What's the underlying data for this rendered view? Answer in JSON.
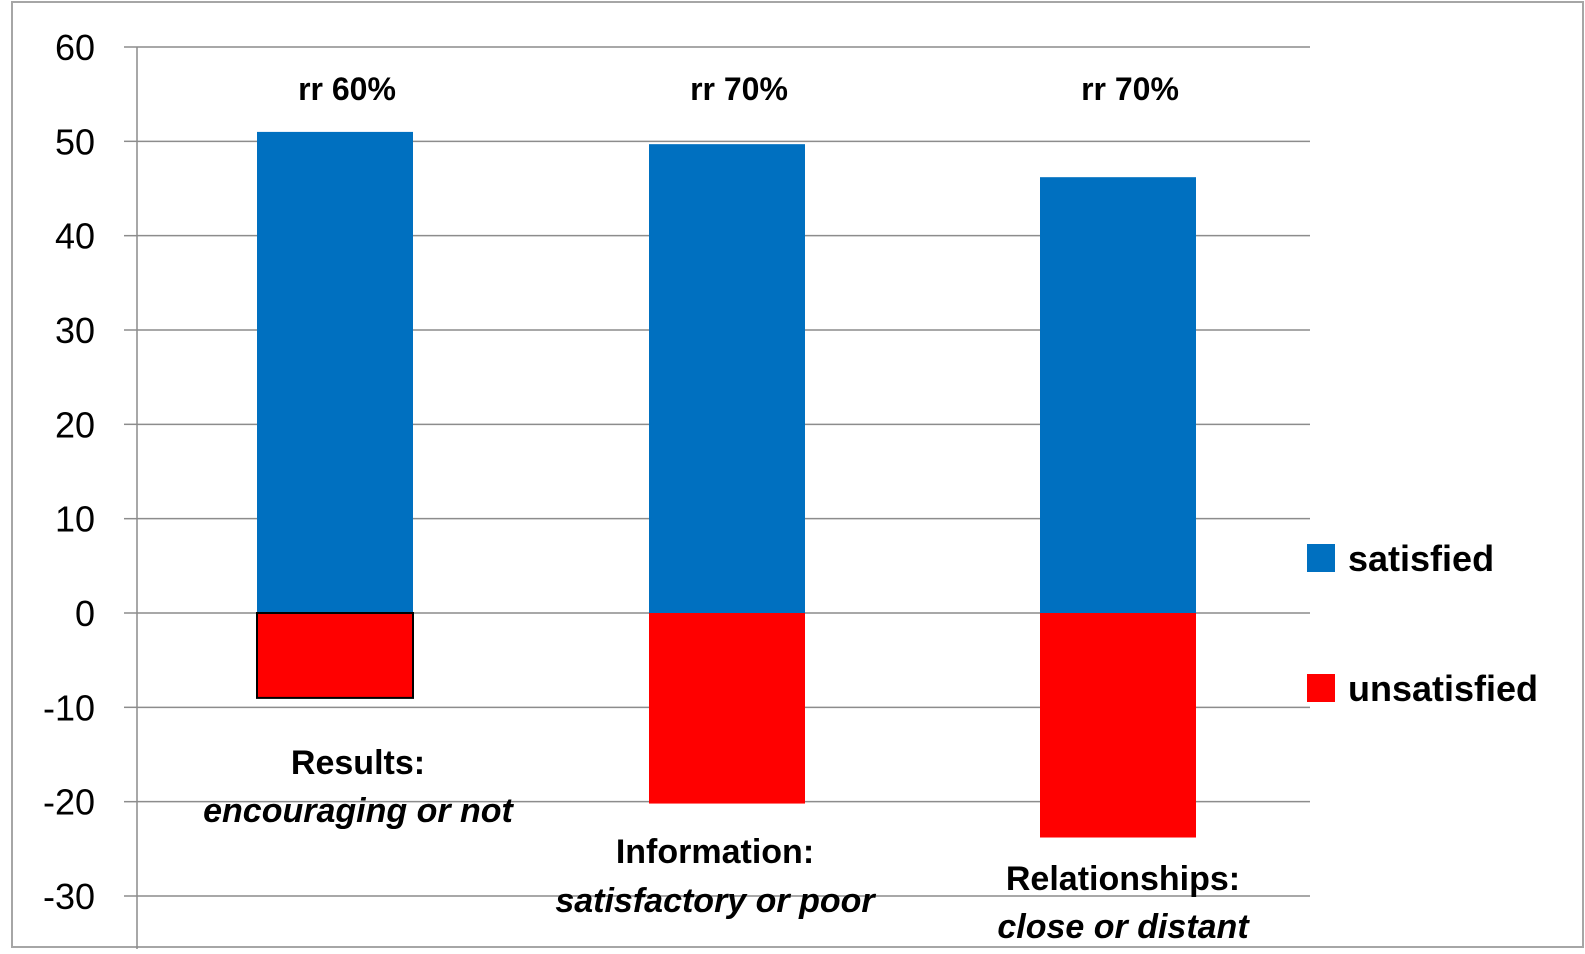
{
  "chart_data": {
    "type": "bar",
    "stacked": true,
    "categories": [
      {
        "title": "Results:",
        "subtitle": "encouraging or not"
      },
      {
        "title": "Information:",
        "subtitle": "satisfactory or poor"
      },
      {
        "title": "Relationships:",
        "subtitle": "close or distant"
      }
    ],
    "series": [
      {
        "name": "satisfied",
        "color": "#0070C0",
        "values": [
          51,
          49.7,
          46.2
        ]
      },
      {
        "name": "unsatisfied",
        "color": "#FF0000",
        "values": [
          -9,
          -20.2,
          -23.8
        ]
      }
    ],
    "annotations": [
      "rr 60%",
      "rr 70%",
      "rr 70%"
    ],
    "ylim": [
      -30,
      60
    ],
    "yticks": [
      60,
      50,
      40,
      30,
      20,
      10,
      0,
      -10,
      -20,
      -30
    ],
    "grid": true,
    "legend_position": "right"
  }
}
